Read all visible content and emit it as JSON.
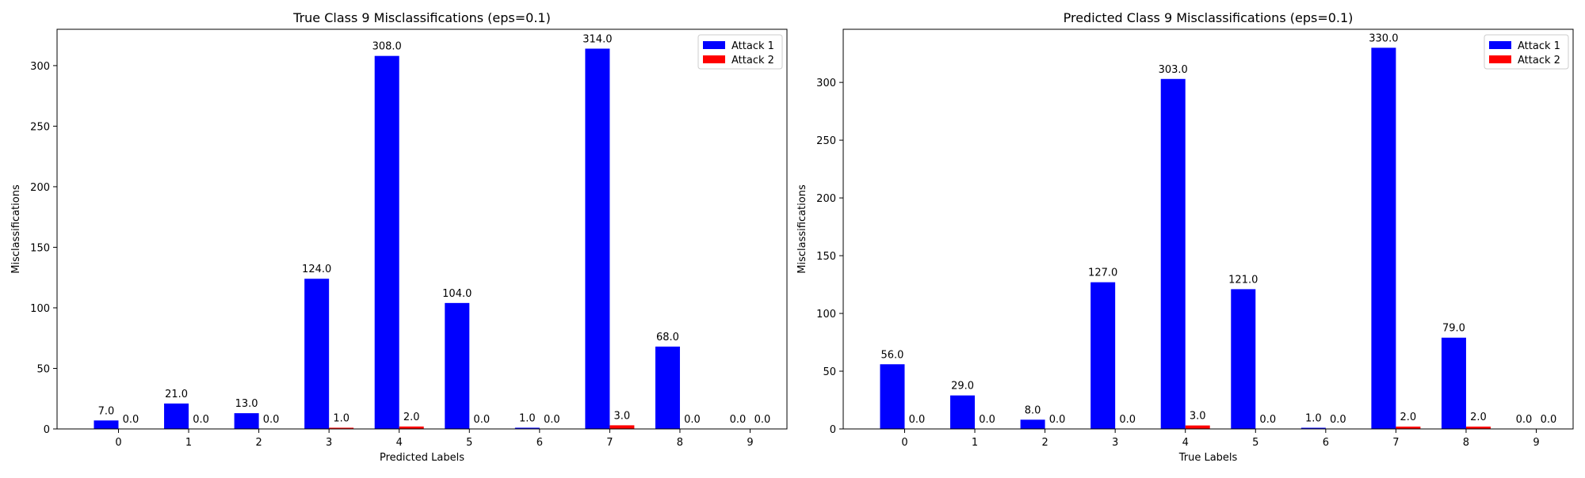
{
  "chart_data": [
    {
      "type": "bar",
      "title": "True Class 9 Misclassifications (eps=0.1)",
      "xlabel": "Predicted Labels",
      "ylabel": "Misclassifications",
      "categories": [
        "0",
        "1",
        "2",
        "3",
        "4",
        "5",
        "6",
        "7",
        "8",
        "9"
      ],
      "series": [
        {
          "name": "Attack 1",
          "color": "#0000ff",
          "values": [
            7.0,
            21.0,
            13.0,
            124.0,
            308.0,
            104.0,
            1.0,
            314.0,
            68.0,
            0.0
          ],
          "labels": [
            "7.0",
            "21.0",
            "13.0",
            "124.0",
            "308.0",
            "104.0",
            "1.0",
            "314.0",
            "68.0",
            "0.0"
          ]
        },
        {
          "name": "Attack 2",
          "color": "#ff0000",
          "values": [
            0.0,
            0.0,
            0.0,
            1.0,
            2.0,
            0.0,
            0.0,
            3.0,
            0.0,
            0.0
          ],
          "labels": [
            "0.0",
            "0.0",
            "0.0",
            "1.0",
            "2.0",
            "0.0",
            "0.0",
            "3.0",
            "0.0",
            "0.0"
          ]
        }
      ],
      "ylim": [
        0,
        330
      ],
      "yticks": [
        "0",
        "50",
        "100",
        "150",
        "200",
        "250",
        "300"
      ],
      "legend": "top-right",
      "grid": false
    },
    {
      "type": "bar",
      "title": "Predicted Class 9 Misclassifications (eps=0.1)",
      "xlabel": "True Labels",
      "ylabel": "Misclassifications",
      "categories": [
        "0",
        "1",
        "2",
        "3",
        "4",
        "5",
        "6",
        "7",
        "8",
        "9"
      ],
      "series": [
        {
          "name": "Attack 1",
          "color": "#0000ff",
          "values": [
            56.0,
            29.0,
            8.0,
            127.0,
            303.0,
            121.0,
            1.0,
            330.0,
            79.0,
            0.0
          ],
          "labels": [
            "56.0",
            "29.0",
            "8.0",
            "127.0",
            "303.0",
            "121.0",
            "1.0",
            "330.0",
            "79.0",
            "0.0"
          ]
        },
        {
          "name": "Attack 2",
          "color": "#ff0000",
          "values": [
            0.0,
            0.0,
            0.0,
            0.0,
            3.0,
            0.0,
            0.0,
            2.0,
            2.0,
            0.0
          ],
          "labels": [
            "0.0",
            "0.0",
            "0.0",
            "0.0",
            "3.0",
            "0.0",
            "0.0",
            "2.0",
            "2.0",
            "0.0"
          ]
        }
      ],
      "ylim": [
        0,
        346
      ],
      "yticks": [
        "0",
        "50",
        "100",
        "150",
        "200",
        "250",
        "300"
      ],
      "legend": "top-right",
      "grid": false
    }
  ]
}
